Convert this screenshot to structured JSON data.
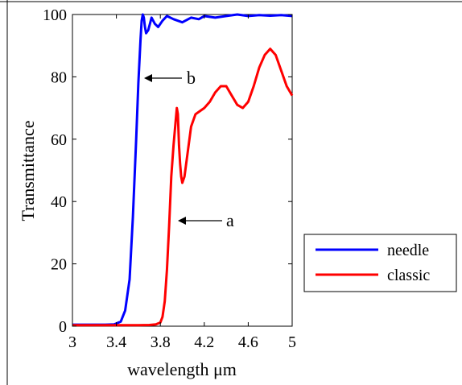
{
  "chart_data": {
    "type": "line",
    "title": "",
    "xlabel": "wavelength μm",
    "ylabel": "Transmittance",
    "xlim": [
      3,
      5
    ],
    "ylim": [
      0,
      100
    ],
    "x_ticks": [
      3,
      3.4,
      3.8,
      4.2,
      4.6,
      5
    ],
    "x_tick_labels": [
      "3",
      "3.4",
      "3.8",
      "4.2",
      "4.6",
      "5"
    ],
    "y_ticks": [
      0,
      20,
      40,
      60,
      80,
      100
    ],
    "y_tick_labels": [
      "0",
      "20",
      "40",
      "60",
      "80",
      "100"
    ],
    "grid": false,
    "legend_position": "right-outside",
    "series": [
      {
        "name": "needle",
        "color": "#0000ff",
        "x": [
          3.0,
          3.3,
          3.38,
          3.44,
          3.48,
          3.52,
          3.55,
          3.58,
          3.6,
          3.62,
          3.63,
          3.64,
          3.65,
          3.66,
          3.67,
          3.69,
          3.72,
          3.75,
          3.78,
          3.82,
          3.86,
          3.92,
          4.0,
          4.08,
          4.15,
          4.2,
          4.3,
          4.4,
          4.5,
          4.6,
          4.7,
          4.8,
          4.9,
          5.0
        ],
        "y": [
          0.5,
          0.5,
          0.6,
          1.5,
          5,
          15,
          35,
          60,
          78,
          92,
          98,
          100,
          99,
          96,
          94,
          95,
          99,
          97,
          96,
          98,
          99.5,
          98.5,
          97.5,
          99,
          98.5,
          99.5,
          99,
          99.5,
          100,
          99.5,
          99.8,
          99.6,
          99.8,
          99.5
        ]
      },
      {
        "name": "classic",
        "color": "#ff0000",
        "x": [
          3.0,
          3.6,
          3.7,
          3.76,
          3.8,
          3.82,
          3.84,
          3.86,
          3.88,
          3.9,
          3.92,
          3.94,
          3.95,
          3.96,
          3.97,
          3.98,
          3.99,
          4.0,
          4.02,
          4.05,
          4.08,
          4.12,
          4.16,
          4.2,
          4.25,
          4.3,
          4.35,
          4.4,
          4.45,
          4.5,
          4.55,
          4.6,
          4.65,
          4.7,
          4.75,
          4.8,
          4.85,
          4.9,
          4.95,
          5.0
        ],
        "y": [
          0.3,
          0.3,
          0.4,
          0.6,
          1.2,
          3,
          8,
          18,
          32,
          48,
          58,
          66,
          70,
          68,
          58,
          52,
          48,
          46,
          48,
          56,
          64,
          68,
          69,
          70,
          72,
          75,
          77,
          77,
          74,
          71,
          70,
          72,
          77,
          83,
          87,
          89,
          87,
          82,
          77,
          74
        ]
      }
    ],
    "annotations": [
      {
        "text": "b",
        "x": 3.68,
        "y": 80
      },
      {
        "text": "a",
        "x": 3.96,
        "y": 34
      }
    ]
  }
}
